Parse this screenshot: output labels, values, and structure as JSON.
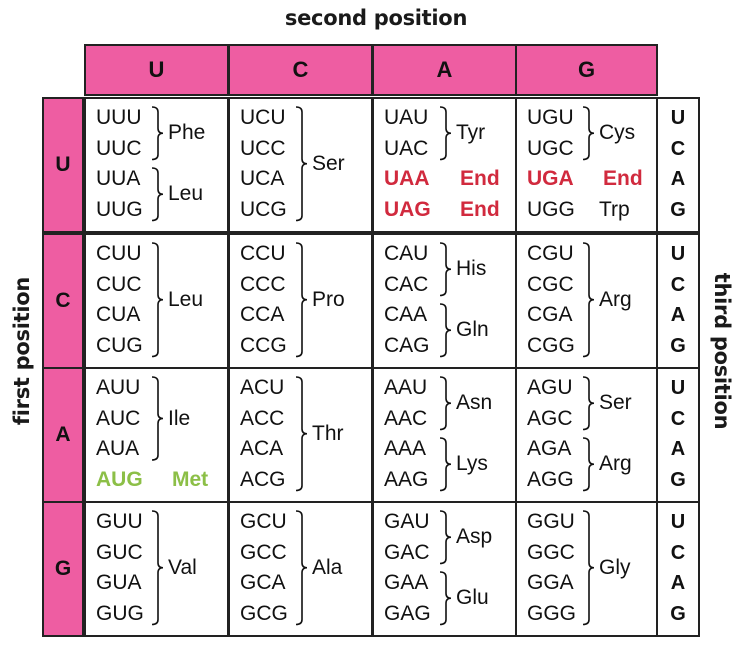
{
  "titles": {
    "top": "second position",
    "left": "first position",
    "right": "third position"
  },
  "second_bases": [
    "U",
    "C",
    "A",
    "G"
  ],
  "first_bases": [
    "U",
    "C",
    "A",
    "G"
  ],
  "third_bases": [
    "U",
    "C",
    "A",
    "G"
  ],
  "colors": {
    "header_fill": "#ee5da2",
    "stop": "#d12a3e",
    "start": "#8cbf47",
    "border": "#222222"
  },
  "rows": [
    {
      "first": "U",
      "cells": [
        {
          "codons": [
            {
              "text": "UUU"
            },
            {
              "text": "UUC"
            },
            {
              "text": "UUA"
            },
            {
              "text": "UUG"
            }
          ],
          "groups": [
            {
              "from": 0,
              "to": 1,
              "label": "Phe"
            },
            {
              "from": 2,
              "to": 3,
              "label": "Leu"
            }
          ]
        },
        {
          "codons": [
            {
              "text": "UCU"
            },
            {
              "text": "UCC"
            },
            {
              "text": "UCA"
            },
            {
              "text": "UCG"
            }
          ],
          "groups": [
            {
              "from": 0,
              "to": 3,
              "label": "Ser"
            }
          ]
        },
        {
          "codons": [
            {
              "text": "UAU"
            },
            {
              "text": "UAC"
            },
            {
              "text": "UAA",
              "style": "stop",
              "aa": "End"
            },
            {
              "text": "UAG",
              "style": "stop",
              "aa": "End"
            }
          ],
          "groups": [
            {
              "from": 0,
              "to": 1,
              "label": "Tyr"
            }
          ]
        },
        {
          "codons": [
            {
              "text": "UGU"
            },
            {
              "text": "UGC"
            },
            {
              "text": "UGA",
              "style": "stop",
              "aa": "End"
            },
            {
              "text": "UGG",
              "aa": "Trp"
            }
          ],
          "groups": [
            {
              "from": 0,
              "to": 1,
              "label": "Cys"
            }
          ]
        }
      ]
    },
    {
      "first": "C",
      "cells": [
        {
          "codons": [
            {
              "text": "CUU"
            },
            {
              "text": "CUC"
            },
            {
              "text": "CUA"
            },
            {
              "text": "CUG"
            }
          ],
          "groups": [
            {
              "from": 0,
              "to": 3,
              "label": "Leu"
            }
          ]
        },
        {
          "codons": [
            {
              "text": "CCU"
            },
            {
              "text": "CCC"
            },
            {
              "text": "CCA"
            },
            {
              "text": "CCG"
            }
          ],
          "groups": [
            {
              "from": 0,
              "to": 3,
              "label": "Pro"
            }
          ]
        },
        {
          "codons": [
            {
              "text": "CAU"
            },
            {
              "text": "CAC"
            },
            {
              "text": "CAA"
            },
            {
              "text": "CAG"
            }
          ],
          "groups": [
            {
              "from": 0,
              "to": 1,
              "label": "His"
            },
            {
              "from": 2,
              "to": 3,
              "label": "Gln"
            }
          ]
        },
        {
          "codons": [
            {
              "text": "CGU"
            },
            {
              "text": "CGC"
            },
            {
              "text": "CGA"
            },
            {
              "text": "CGG"
            }
          ],
          "groups": [
            {
              "from": 0,
              "to": 3,
              "label": "Arg"
            }
          ]
        }
      ]
    },
    {
      "first": "A",
      "cells": [
        {
          "codons": [
            {
              "text": "AUU"
            },
            {
              "text": "AUC"
            },
            {
              "text": "AUA"
            },
            {
              "text": "AUG",
              "style": "start",
              "aa": "Met"
            }
          ],
          "groups": [
            {
              "from": 0,
              "to": 2,
              "label": "Ile"
            }
          ]
        },
        {
          "codons": [
            {
              "text": "ACU"
            },
            {
              "text": "ACC"
            },
            {
              "text": "ACA"
            },
            {
              "text": "ACG"
            }
          ],
          "groups": [
            {
              "from": 0,
              "to": 3,
              "label": "Thr"
            }
          ]
        },
        {
          "codons": [
            {
              "text": "AAU"
            },
            {
              "text": "AAC"
            },
            {
              "text": "AAA"
            },
            {
              "text": "AAG"
            }
          ],
          "groups": [
            {
              "from": 0,
              "to": 1,
              "label": "Asn"
            },
            {
              "from": 2,
              "to": 3,
              "label": "Lys"
            }
          ]
        },
        {
          "codons": [
            {
              "text": "AGU"
            },
            {
              "text": "AGC"
            },
            {
              "text": "AGA"
            },
            {
              "text": "AGG"
            }
          ],
          "groups": [
            {
              "from": 0,
              "to": 1,
              "label": "Ser"
            },
            {
              "from": 2,
              "to": 3,
              "label": "Arg"
            }
          ]
        }
      ]
    },
    {
      "first": "G",
      "cells": [
        {
          "codons": [
            {
              "text": "GUU"
            },
            {
              "text": "GUC"
            },
            {
              "text": "GUA"
            },
            {
              "text": "GUG"
            }
          ],
          "groups": [
            {
              "from": 0,
              "to": 3,
              "label": "Val"
            }
          ]
        },
        {
          "codons": [
            {
              "text": "GCU"
            },
            {
              "text": "GCC"
            },
            {
              "text": "GCA"
            },
            {
              "text": "GCG"
            }
          ],
          "groups": [
            {
              "from": 0,
              "to": 3,
              "label": "Ala"
            }
          ]
        },
        {
          "codons": [
            {
              "text": "GAU"
            },
            {
              "text": "GAC"
            },
            {
              "text": "GAA"
            },
            {
              "text": "GAG"
            }
          ],
          "groups": [
            {
              "from": 0,
              "to": 1,
              "label": "Asp"
            },
            {
              "from": 2,
              "to": 3,
              "label": "Glu"
            }
          ]
        },
        {
          "codons": [
            {
              "text": "GGU"
            },
            {
              "text": "GGC"
            },
            {
              "text": "GGA"
            },
            {
              "text": "GGG"
            }
          ],
          "groups": [
            {
              "from": 0,
              "to": 3,
              "label": "Gly"
            }
          ]
        }
      ]
    }
  ]
}
